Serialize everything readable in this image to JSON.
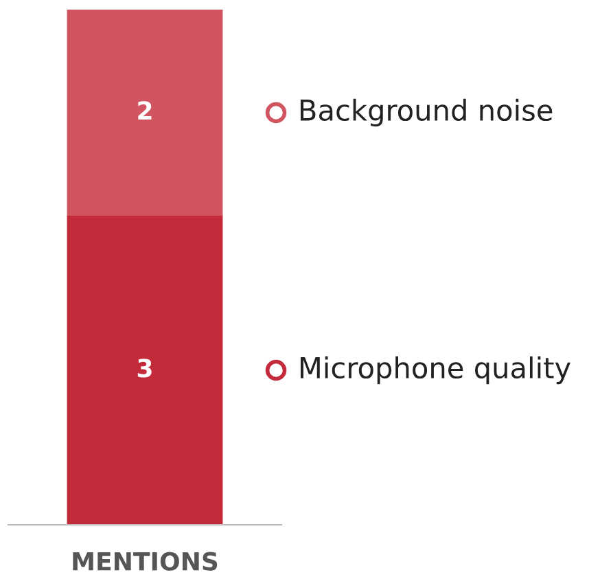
{
  "chart_data": {
    "type": "bar",
    "stacked": true,
    "categories": [
      "MENTIONS"
    ],
    "series": [
      {
        "name": "Microphone quality",
        "color": "#c42b3a",
        "values": [
          3
        ]
      },
      {
        "name": "Background noise",
        "color": "#d05560",
        "values": [
          2
        ]
      }
    ],
    "data_labels": true,
    "legend": "right",
    "grid": false
  }
}
